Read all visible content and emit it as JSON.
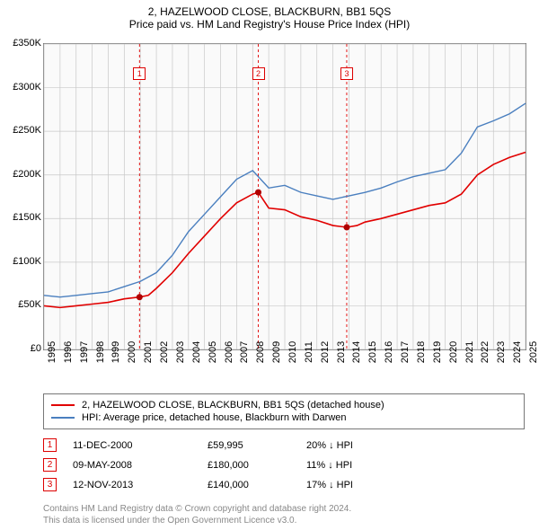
{
  "title": "2, HAZELWOOD CLOSE, BLACKBURN, BB1 5QS",
  "subtitle": "Price paid vs. HM Land Registry's House Price Index (HPI)",
  "chart": {
    "type": "line",
    "background_color": "#fafafa",
    "grid_color": "#c8c8c8",
    "border_color": "#777777",
    "ylim": [
      0,
      350000
    ],
    "ytick_step": 50000,
    "yticks": [
      "£0",
      "£50K",
      "£100K",
      "£150K",
      "£200K",
      "£250K",
      "£300K",
      "£350K"
    ],
    "xlim": [
      1995,
      2025
    ],
    "xticks": [
      1995,
      1996,
      1997,
      1998,
      1999,
      2000,
      2001,
      2002,
      2003,
      2004,
      2005,
      2006,
      2007,
      2008,
      2009,
      2010,
      2011,
      2012,
      2013,
      2014,
      2015,
      2016,
      2017,
      2018,
      2019,
      2020,
      2021,
      2022,
      2023,
      2024,
      2025
    ],
    "series": [
      {
        "name": "2, HAZELWOOD CLOSE, BLACKBURN, BB1 5QS (detached house)",
        "color": "#e10000",
        "width": 1.6,
        "data": [
          [
            1995,
            50000
          ],
          [
            1996,
            48000
          ],
          [
            1997,
            50000
          ],
          [
            1998,
            52000
          ],
          [
            1999,
            54000
          ],
          [
            2000,
            58000
          ],
          [
            2000.95,
            60000
          ],
          [
            2001.5,
            62000
          ],
          [
            2002,
            70000
          ],
          [
            2003,
            88000
          ],
          [
            2004,
            110000
          ],
          [
            2005,
            130000
          ],
          [
            2006,
            150000
          ],
          [
            2007,
            168000
          ],
          [
            2008,
            178000
          ],
          [
            2008.35,
            180000
          ],
          [
            2009,
            162000
          ],
          [
            2010,
            160000
          ],
          [
            2011,
            152000
          ],
          [
            2012,
            148000
          ],
          [
            2013,
            142000
          ],
          [
            2013.86,
            140000
          ],
          [
            2014.5,
            142000
          ],
          [
            2015,
            146000
          ],
          [
            2016,
            150000
          ],
          [
            2017,
            155000
          ],
          [
            2018,
            160000
          ],
          [
            2019,
            165000
          ],
          [
            2020,
            168000
          ],
          [
            2021,
            178000
          ],
          [
            2022,
            200000
          ],
          [
            2023,
            212000
          ],
          [
            2024,
            220000
          ],
          [
            2025,
            226000
          ]
        ]
      },
      {
        "name": "HPI: Average price, detached house, Blackburn with Darwen",
        "color": "#4a7fbf",
        "width": 1.4,
        "data": [
          [
            1995,
            62000
          ],
          [
            1996,
            60000
          ],
          [
            1997,
            62000
          ],
          [
            1998,
            64000
          ],
          [
            1999,
            66000
          ],
          [
            2000,
            72000
          ],
          [
            2001,
            78000
          ],
          [
            2002,
            88000
          ],
          [
            2003,
            108000
          ],
          [
            2004,
            135000
          ],
          [
            2005,
            155000
          ],
          [
            2006,
            175000
          ],
          [
            2007,
            195000
          ],
          [
            2008,
            205000
          ],
          [
            2009,
            185000
          ],
          [
            2010,
            188000
          ],
          [
            2011,
            180000
          ],
          [
            2012,
            176000
          ],
          [
            2013,
            172000
          ],
          [
            2014,
            176000
          ],
          [
            2015,
            180000
          ],
          [
            2016,
            185000
          ],
          [
            2017,
            192000
          ],
          [
            2018,
            198000
          ],
          [
            2019,
            202000
          ],
          [
            2020,
            206000
          ],
          [
            2021,
            225000
          ],
          [
            2022,
            255000
          ],
          [
            2023,
            262000
          ],
          [
            2024,
            270000
          ],
          [
            2025,
            282000
          ]
        ]
      }
    ],
    "sale_markers": [
      {
        "n": "1",
        "x": 2000.95,
        "y": 59995
      },
      {
        "n": "2",
        "x": 2008.35,
        "y": 180000
      },
      {
        "n": "3",
        "x": 2013.86,
        "y": 140000
      }
    ],
    "marker_line_color": "#e10000",
    "marker_line_dash": "3,3",
    "point_color": "#b00000"
  },
  "legend": [
    {
      "color": "#e10000",
      "label": "2, HAZELWOOD CLOSE, BLACKBURN, BB1 5QS (detached house)"
    },
    {
      "color": "#4a7fbf",
      "label": "HPI: Average price, detached house, Blackburn with Darwen"
    }
  ],
  "sales": [
    {
      "n": "1",
      "date": "11-DEC-2000",
      "price": "£59,995",
      "diff": "20% ↓ HPI"
    },
    {
      "n": "2",
      "date": "09-MAY-2008",
      "price": "£180,000",
      "diff": "11% ↓ HPI"
    },
    {
      "n": "3",
      "date": "12-NOV-2013",
      "price": "£140,000",
      "diff": "17% ↓ HPI"
    }
  ],
  "license_line1": "Contains HM Land Registry data © Crown copyright and database right 2024.",
  "license_line2": "This data is licensed under the Open Government Licence v3.0."
}
